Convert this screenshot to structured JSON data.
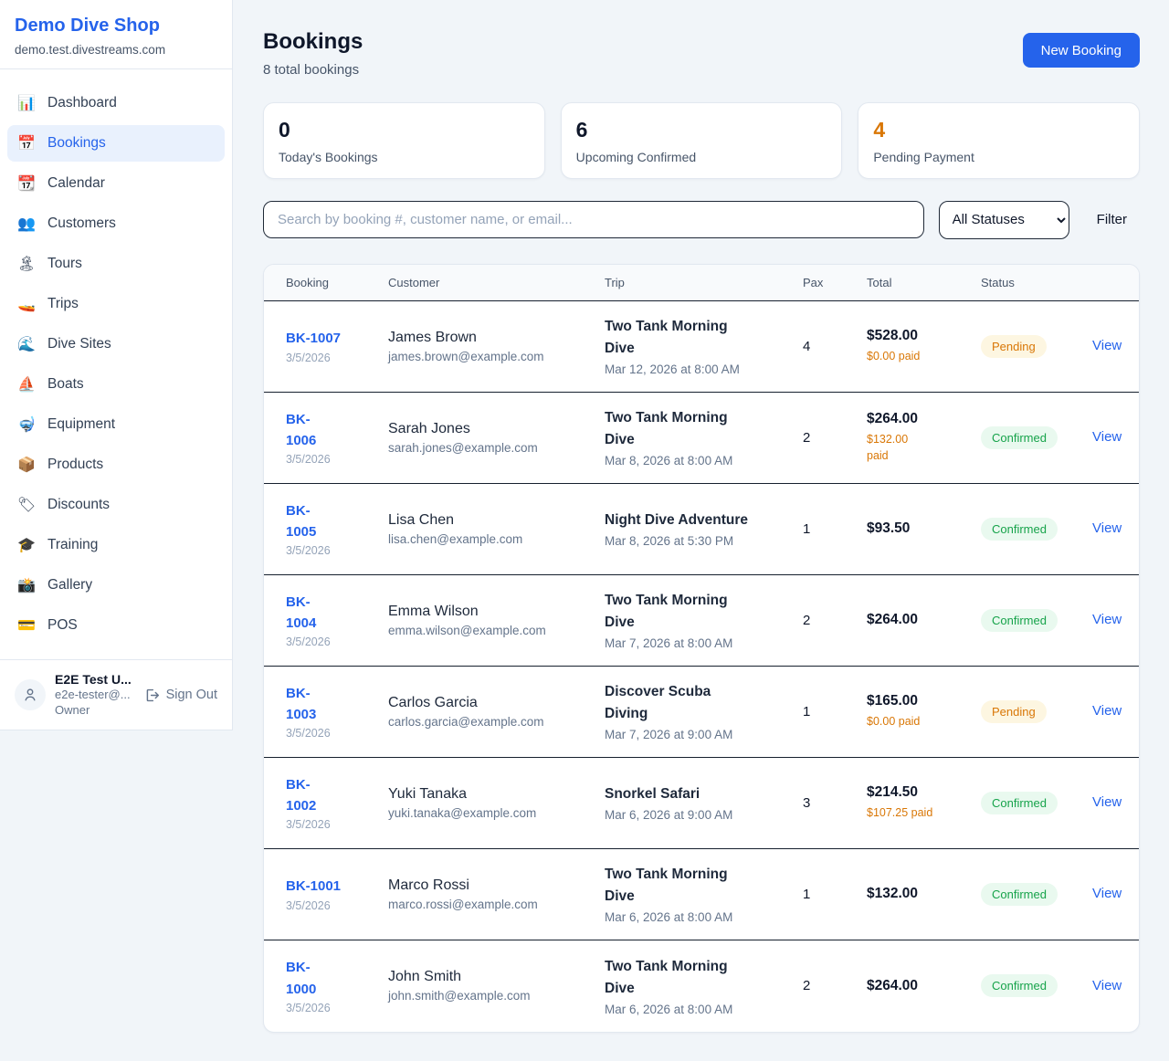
{
  "sidebar": {
    "brand": "Demo Dive Shop",
    "domain": "demo.test.divestreams.com",
    "items": [
      {
        "label": "Dashboard",
        "icon": "📊",
        "icon_name": "bar-chart-icon",
        "active": false
      },
      {
        "label": "Bookings",
        "icon": "📅",
        "icon_name": "calendar-date-icon",
        "active": true
      },
      {
        "label": "Calendar",
        "icon": "📆",
        "icon_name": "tear-off-calendar-icon",
        "active": false
      },
      {
        "label": "Customers",
        "icon": "👥",
        "icon_name": "people-icon",
        "active": false
      },
      {
        "label": "Tours",
        "icon": "🏝",
        "icon_name": "island-icon",
        "active": false
      },
      {
        "label": "Trips",
        "icon": "🚤",
        "icon_name": "speedboat-icon",
        "active": false
      },
      {
        "label": "Dive Sites",
        "icon": "🌊",
        "icon_name": "wave-icon",
        "active": false
      },
      {
        "label": "Boats",
        "icon": "⛵",
        "icon_name": "sailboat-icon",
        "active": false
      },
      {
        "label": "Equipment",
        "icon": "🤿",
        "icon_name": "diving-mask-icon",
        "active": false
      },
      {
        "label": "Products",
        "icon": "📦",
        "icon_name": "package-icon",
        "active": false
      },
      {
        "label": "Discounts",
        "icon": "🏷",
        "icon_name": "tag-icon",
        "active": false
      },
      {
        "label": "Training",
        "icon": "🎓",
        "icon_name": "graduation-cap-icon",
        "active": false
      },
      {
        "label": "Gallery",
        "icon": "📸",
        "icon_name": "camera-icon",
        "active": false
      },
      {
        "label": "POS",
        "icon": "💳",
        "icon_name": "credit-card-icon",
        "active": false
      }
    ],
    "user": {
      "name": "E2E Test U...",
      "email": "e2e-tester@...",
      "role": "Owner",
      "sign_out_label": "Sign Out",
      "avatar_icon_name": "person-icon",
      "sign_out_icon_name": "sign-out-icon"
    }
  },
  "header": {
    "title": "Bookings",
    "subtitle": "8 total bookings",
    "new_booking_label": "New Booking"
  },
  "stats": [
    {
      "value": "0",
      "label": "Today's Bookings"
    },
    {
      "value": "6",
      "label": "Upcoming Confirmed"
    },
    {
      "value": "4",
      "label": "Pending Payment"
    }
  ],
  "filters": {
    "search_placeholder": "Search by booking #, customer name, or email...",
    "status_value": "All Statuses",
    "filter_label": "Filter"
  },
  "table": {
    "columns": [
      "Booking",
      "Customer",
      "Trip",
      "Pax",
      "Total",
      "Status",
      ""
    ],
    "rows": [
      {
        "id": "BK-1007",
        "id_display": "BK-1007",
        "date": "3/5/2026",
        "customer": "James Brown",
        "email": "james.brown@example.com",
        "trip": "Two Tank Morning Dive",
        "trip_display": "Two Tank Morning\nDive",
        "trip_date": "Mar 12, 2026 at 8:00 AM",
        "pax": "4",
        "total": "$528.00",
        "paid": "$0.00 paid",
        "status": "Pending",
        "action": "View"
      },
      {
        "id": "BK-1006",
        "id_display": "BK-\n1006",
        "date": "3/5/2026",
        "customer": "Sarah Jones",
        "email": "sarah.jones@example.com",
        "trip": "Two Tank Morning Dive",
        "trip_display": "Two Tank Morning\nDive",
        "trip_date": "Mar 8, 2026 at 8:00 AM",
        "pax": "2",
        "total": "$264.00",
        "paid": "$132.00\npaid",
        "status": "Confirmed",
        "action": "View"
      },
      {
        "id": "BK-1005",
        "id_display": "BK-\n1005",
        "date": "3/5/2026",
        "customer": "Lisa Chen",
        "email": "lisa.chen@example.com",
        "trip": "Night Dive Adventure",
        "trip_display": "Night Dive Adventure",
        "trip_date": "Mar 8, 2026 at 5:30 PM",
        "pax": "1",
        "total": "$93.50",
        "paid": "",
        "status": "Confirmed",
        "action": "View"
      },
      {
        "id": "BK-1004",
        "id_display": "BK-\n1004",
        "date": "3/5/2026",
        "customer": "Emma Wilson",
        "email": "emma.wilson@example.com",
        "trip": "Two Tank Morning Dive",
        "trip_display": "Two Tank Morning\nDive",
        "trip_date": "Mar 7, 2026 at 8:00 AM",
        "pax": "2",
        "total": "$264.00",
        "paid": "",
        "status": "Confirmed",
        "action": "View"
      },
      {
        "id": "BK-1003",
        "id_display": "BK-\n1003",
        "date": "3/5/2026",
        "customer": "Carlos Garcia",
        "email": "carlos.garcia@example.com",
        "trip": "Discover Scuba Diving",
        "trip_display": "Discover Scuba\nDiving",
        "trip_date": "Mar 7, 2026 at 9:00 AM",
        "pax": "1",
        "total": "$165.00",
        "paid": "$0.00 paid",
        "status": "Pending",
        "action": "View"
      },
      {
        "id": "BK-1002",
        "id_display": "BK-\n1002",
        "date": "3/5/2026",
        "customer": "Yuki Tanaka",
        "email": "yuki.tanaka@example.com",
        "trip": "Snorkel Safari",
        "trip_display": "Snorkel Safari",
        "trip_date": "Mar 6, 2026 at 9:00 AM",
        "pax": "3",
        "total": "$214.50",
        "paid": "$107.25 paid",
        "status": "Confirmed",
        "action": "View"
      },
      {
        "id": "BK-1001",
        "id_display": "BK-1001",
        "date": "3/5/2026",
        "customer": "Marco Rossi",
        "email": "marco.rossi@example.com",
        "trip": "Two Tank Morning Dive",
        "trip_display": "Two Tank Morning\nDive",
        "trip_date": "Mar 6, 2026 at 8:00 AM",
        "pax": "1",
        "total": "$132.00",
        "paid": "",
        "status": "Confirmed",
        "action": "View"
      },
      {
        "id": "BK-1000",
        "id_display": "BK-\n1000",
        "date": "3/5/2026",
        "customer": "John Smith",
        "email": "john.smith@example.com",
        "trip": "Two Tank Morning Dive",
        "trip_display": "Two Tank Morning\nDive",
        "trip_date": "Mar 6, 2026 at 8:00 AM",
        "pax": "2",
        "total": "$264.00",
        "paid": "",
        "status": "Confirmed",
        "action": "View"
      }
    ]
  },
  "colors": {
    "accent_blue": "#2563eb",
    "pending_orange": "#d97706",
    "pending_bg": "#fdf6e1",
    "confirmed_green": "#16a34a",
    "confirmed_bg": "#e9f9ef",
    "page_bg": "#f1f5f9"
  }
}
